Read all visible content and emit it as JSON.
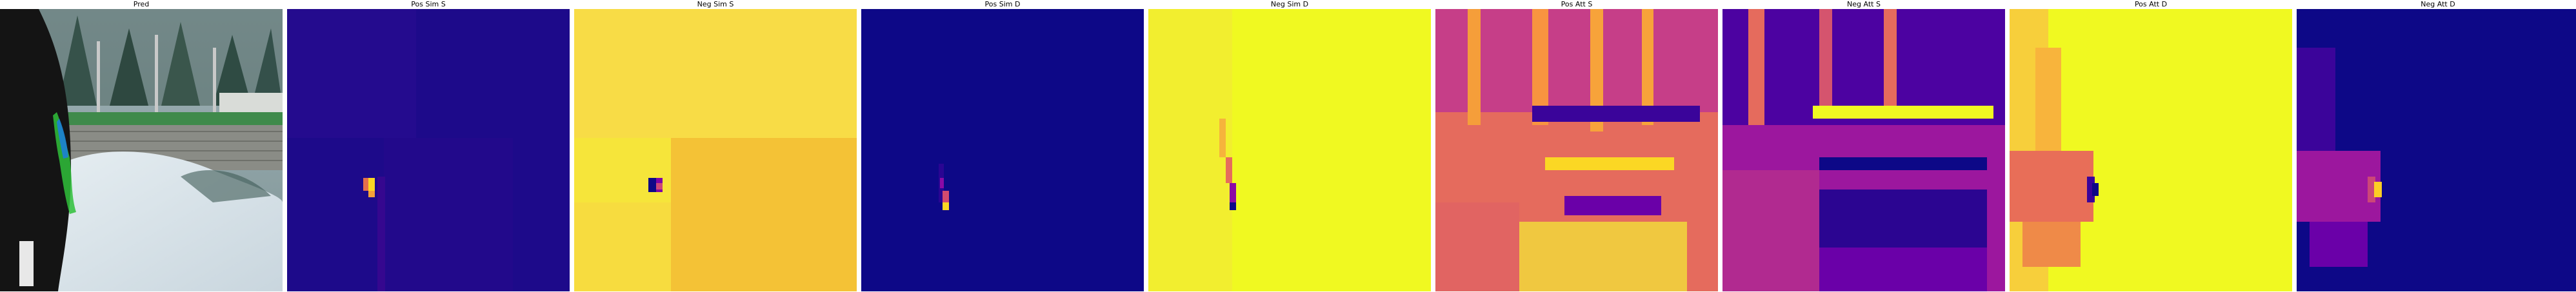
{
  "panels": [
    {
      "title": "Pred",
      "kind": "photo"
    },
    {
      "title": "Pos Sim S",
      "colormap": "plasma"
    },
    {
      "title": "Neg Sim S",
      "colormap": "plasma"
    },
    {
      "title": "Pos Sim D",
      "colormap": "plasma"
    },
    {
      "title": "Neg Sim D",
      "colormap": "plasma"
    },
    {
      "title": "Pos Att S",
      "colormap": "plasma"
    },
    {
      "title": "Neg Att S",
      "colormap": "plasma"
    },
    {
      "title": "Pos Att D",
      "colormap": "plasma"
    },
    {
      "title": "Neg Att D",
      "colormap": "plasma"
    }
  ]
}
